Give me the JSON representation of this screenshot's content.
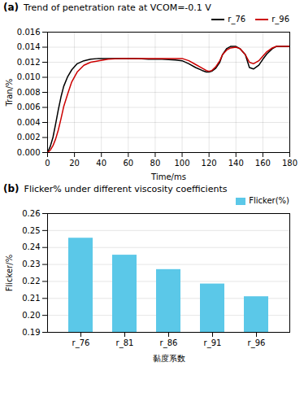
{
  "chart_data": [
    {
      "type": "line",
      "title": "Trend of penetration rate at VCOM=-0.1 V",
      "annotations": [
        "(a)"
      ],
      "x_label": "Time/ms",
      "y_label": "Tran/%",
      "x": [
        0,
        2,
        4,
        6,
        8,
        10,
        12,
        15,
        18,
        22,
        27,
        32,
        38,
        45,
        55,
        65,
        75,
        85,
        95,
        100,
        105,
        110,
        115,
        118,
        120,
        122,
        125,
        128,
        130,
        133,
        136,
        140,
        143,
        147,
        150,
        153,
        157,
        160,
        163,
        167,
        170,
        175,
        180
      ],
      "series": [
        {
          "name": "r_76",
          "color": "#000000",
          "values": [
            0.0,
            0.0008,
            0.002,
            0.0038,
            0.0057,
            0.0074,
            0.0088,
            0.0101,
            0.011,
            0.0118,
            0.0122,
            0.0124,
            0.0125,
            0.0125,
            0.0125,
            0.0125,
            0.0124,
            0.0124,
            0.0123,
            0.0122,
            0.0118,
            0.0113,
            0.0109,
            0.0107,
            0.0107,
            0.0108,
            0.0112,
            0.012,
            0.013,
            0.0138,
            0.0141,
            0.0141,
            0.0138,
            0.013,
            0.0113,
            0.0111,
            0.0116,
            0.0124,
            0.0131,
            0.0138,
            0.0141,
            0.0141,
            0.0141
          ]
        },
        {
          "name": "r_96",
          "color": "#cc0000",
          "values": [
            0.0,
            0.0003,
            0.0009,
            0.0018,
            0.003,
            0.0045,
            0.0061,
            0.0078,
            0.0094,
            0.0107,
            0.0116,
            0.012,
            0.0122,
            0.0124,
            0.0125,
            0.0125,
            0.0125,
            0.0125,
            0.0125,
            0.0125,
            0.0122,
            0.0117,
            0.0112,
            0.0109,
            0.0108,
            0.0109,
            0.0114,
            0.0122,
            0.013,
            0.0136,
            0.0139,
            0.014,
            0.0138,
            0.013,
            0.012,
            0.0118,
            0.0122,
            0.0128,
            0.0134,
            0.0139,
            0.0141,
            0.0141,
            0.0141
          ]
        }
      ],
      "xlim": [
        0,
        180
      ],
      "xticks": [
        0,
        20,
        40,
        60,
        80,
        100,
        120,
        140,
        160,
        180
      ],
      "ylim": [
        0.0,
        0.016
      ],
      "yticks": [
        {
          "value": 0.0,
          "label": "0.000"
        },
        0.002,
        0.004,
        0.006,
        0.008,
        {
          "value": 0.01,
          "label": "0.010"
        },
        0.012,
        0.014,
        0.016
      ],
      "grid": true,
      "legend": "upper right"
    },
    {
      "type": "bar",
      "title": "Flicker% under different viscosity coefficients",
      "annotations": [
        "(b)"
      ],
      "x_label": "黏度系数",
      "y_label": "Flicker/%",
      "categories": [
        "r_76",
        "r_81",
        "r_86",
        "r_91",
        "r_96"
      ],
      "series": [
        {
          "name": "Flicker(%)",
          "color": "#5BC8E8",
          "values": [
            0.2455,
            0.2355,
            0.227,
            0.2185,
            0.211
          ]
        }
      ],
      "ylim": [
        0.19,
        0.26
      ],
      "yticks": [
        0.19,
        {
          "value": 0.2,
          "label": "0.20"
        },
        0.21,
        0.22,
        0.23,
        0.24,
        0.25,
        0.26
      ],
      "grid": "y",
      "legend": "upper right"
    }
  ]
}
